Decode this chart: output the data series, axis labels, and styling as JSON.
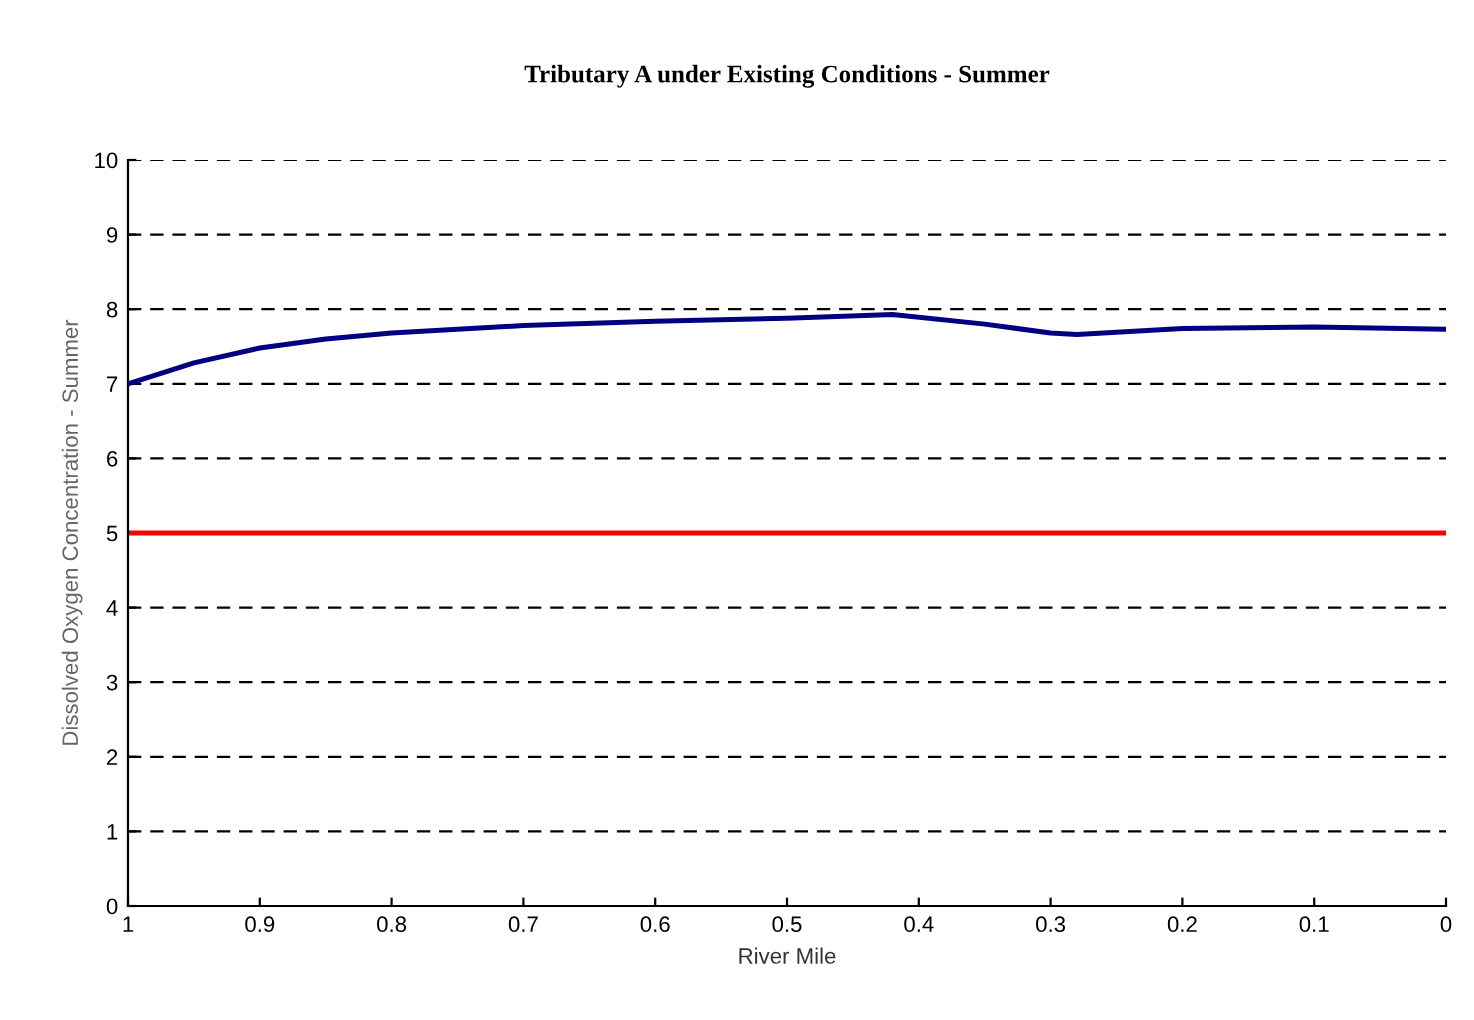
{
  "chart_data": {
    "type": "line",
    "title": "Tributary A under Existing Conditions - Summer",
    "xlabel": "River Mile",
    "ylabel": "Dissolved Oxygen Concentration - Summer",
    "x": [
      1,
      0.95,
      0.9,
      0.85,
      0.8,
      0.7,
      0.6,
      0.5,
      0.42,
      0.35,
      0.3,
      0.28,
      0.2,
      0.1,
      0
    ],
    "series": [
      {
        "color": "#000080",
        "values": [
          7.0,
          7.28,
          7.48,
          7.6,
          7.68,
          7.78,
          7.84,
          7.88,
          7.93,
          7.8,
          7.68,
          7.66,
          7.74,
          7.76,
          7.73
        ]
      }
    ],
    "ref_lines": [
      {
        "axis": "y",
        "value": 5,
        "color": "#ff0000",
        "line_style": "solid"
      }
    ],
    "xlim": [
      1,
      0
    ],
    "ylim": [
      0,
      10
    ],
    "xticks": [
      1,
      0.9,
      0.8,
      0.7,
      0.6,
      0.5,
      0.4,
      0.3,
      0.2,
      0.1,
      0
    ],
    "yticks": [
      0,
      1,
      2,
      3,
      4,
      5,
      6,
      7,
      8,
      9,
      10
    ],
    "grid": "y",
    "marker": "none",
    "line_style": "solid"
  }
}
